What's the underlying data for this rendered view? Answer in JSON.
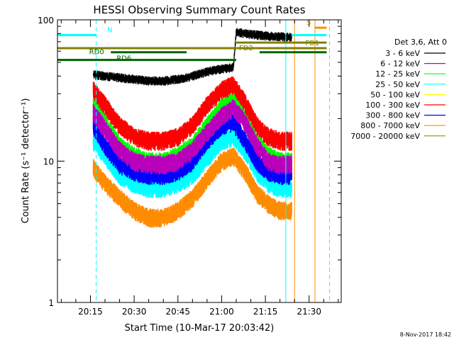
{
  "chart_data": {
    "type": "line",
    "title": "HESSI Observing Summary Count Rates",
    "xlabel": "Start Time (10-Mar-17 20:03:42)",
    "ylabel": "Count Rate (s⁻¹ detector⁻¹)",
    "y_scale": "log",
    "ylim": [
      1,
      100
    ],
    "xlim": [
      "20:03:42",
      "21:41"
    ],
    "x_ticks": [
      "20:15",
      "20:30",
      "20:45",
      "21:00",
      "21:15",
      "21:30"
    ],
    "y_ticks": [
      "1",
      "10",
      "100"
    ],
    "grid": false,
    "legend_position": "right",
    "legend_title": "Det 3,6, Att 0",
    "series": [
      {
        "name": "3 - 6 keV",
        "color": "#000000",
        "x": [
          "20:16",
          "20:20",
          "20:25",
          "20:30",
          "20:35",
          "20:40",
          "20:45",
          "20:50",
          "20:55",
          "21:00",
          "21:04",
          "21:05",
          "21:10",
          "21:15",
          "21:20",
          "21:24"
        ],
        "y": [
          41,
          40,
          39,
          38,
          37,
          37,
          38,
          40,
          43,
          45,
          46,
          82,
          79,
          77,
          76,
          75
        ]
      },
      {
        "name": "6 - 12 keV",
        "color": "#bb00bb",
        "x": [
          "20:16",
          "20:20",
          "20:25",
          "20:30",
          "20:35",
          "20:40",
          "20:45",
          "20:50",
          "20:55",
          "21:00",
          "21:04",
          "21:08",
          "21:12",
          "21:16",
          "21:20",
          "21:24"
        ],
        "y": [
          22,
          17,
          12,
          10,
          9.5,
          9.5,
          10,
          12,
          16,
          21,
          24,
          19,
          13,
          10,
          9.5,
          9.5
        ]
      },
      {
        "name": "12 - 25 keV",
        "color": "#00ff00",
        "x": [
          "20:16",
          "20:20",
          "20:25",
          "20:30",
          "20:35",
          "20:40",
          "20:45",
          "20:50",
          "20:55",
          "21:00",
          "21:04",
          "21:08",
          "21:12",
          "21:16",
          "21:20",
          "21:24"
        ],
        "y": [
          25,
          19,
          13,
          11,
          10,
          10,
          11,
          13,
          18,
          24,
          27,
          20,
          14,
          11,
          10,
          10
        ]
      },
      {
        "name": "25 - 50 keV",
        "color": "#00ffff",
        "x": [
          "20:16",
          "20:20",
          "20:25",
          "20:30",
          "20:35",
          "20:40",
          "20:45",
          "20:50",
          "20:55",
          "21:00",
          "21:04",
          "21:08",
          "21:12",
          "21:16",
          "21:20",
          "21:24"
        ],
        "y": [
          14,
          11,
          8,
          7,
          6.5,
          6.5,
          7,
          8,
          10.5,
          14,
          15,
          12,
          8.5,
          7,
          6.5,
          6.5
        ]
      },
      {
        "name": "50 - 100 keV",
        "color": "#ffff00",
        "x": [],
        "y": []
      },
      {
        "name": "100 - 300 keV",
        "color": "#ff0000",
        "x": [
          "20:16",
          "20:20",
          "20:25",
          "20:30",
          "20:35",
          "20:40",
          "20:45",
          "20:50",
          "20:55",
          "21:00",
          "21:04",
          "21:08",
          "21:12",
          "21:16",
          "21:20",
          "21:24"
        ],
        "y": [
          32,
          25,
          18,
          15,
          14,
          14,
          15,
          18,
          25,
          32,
          35,
          26,
          18,
          15,
          14,
          14
        ]
      },
      {
        "name": "300 - 800 keV",
        "color": "#0000ff",
        "x": [
          "20:16",
          "20:20",
          "20:25",
          "20:30",
          "20:35",
          "20:40",
          "20:45",
          "20:50",
          "20:55",
          "21:00",
          "21:04",
          "21:08",
          "21:12",
          "21:16",
          "21:20",
          "21:24"
        ],
        "y": [
          18,
          13,
          9.5,
          8.5,
          8,
          8,
          8.5,
          10,
          14,
          18,
          19,
          14,
          10,
          8.5,
          8,
          8
        ]
      },
      {
        "name": "800 - 7000 keV",
        "color": "#ff8c00",
        "x": [
          "20:16",
          "20:20",
          "20:25",
          "20:30",
          "20:35",
          "20:40",
          "20:45",
          "20:50",
          "20:55",
          "21:00",
          "21:04",
          "21:08",
          "21:12",
          "21:16",
          "21:20",
          "21:24"
        ],
        "y": [
          9,
          7,
          5.5,
          4.5,
          4,
          4,
          4.5,
          5.5,
          7.5,
          10,
          11,
          8.5,
          6,
          5,
          4.5,
          4.5
        ]
      },
      {
        "name": "7000 - 20000 keV",
        "color": "#8b8b00",
        "x": [],
        "y": []
      }
    ],
    "annotations": {
      "flags": [
        {
          "label": "N",
          "color": "#00ffff",
          "x_start": "20:03:42",
          "x_end": "20:17",
          "y": 78
        },
        {
          "label": "",
          "color": "#00ffff",
          "x_start": "21:24",
          "x_end": "21:36",
          "y": 78
        },
        {
          "label": "S",
          "color": "#ff8c00",
          "x_start": "21:32",
          "x_end": "21:36",
          "y": 88
        },
        {
          "label": "FD1",
          "color": "#808000",
          "x_start": "20:03:42",
          "x_end": "21:36",
          "y": 63
        },
        {
          "label": "FD2",
          "color": "#808000",
          "x_start": "21:05",
          "x_end": "21:36",
          "y": 69
        },
        {
          "label": "RD0",
          "color": "#006400",
          "x_start": "20:22",
          "x_end": "20:48",
          "y": 59
        },
        {
          "label": "",
          "color": "#006400",
          "x_start": "21:13",
          "x_end": "21:36",
          "y": 59
        },
        {
          "label": "RD6",
          "color": "#006400",
          "x_start": "20:03:42",
          "x_end": "21:05",
          "y": 52
        }
      ],
      "vlines": [
        {
          "x": "20:17",
          "color": "#00ffff",
          "style": "dashed"
        },
        {
          "x": "21:22",
          "color": "#00ffff",
          "style": "solid"
        },
        {
          "x": "21:25",
          "color": "#ff8c00",
          "style": "solid"
        },
        {
          "x": "21:32",
          "color": "#ff8c00",
          "style": "solid"
        },
        {
          "x": "21:37",
          "color": "#00ffff",
          "style": "dashed"
        }
      ]
    }
  },
  "footer": "8-Nov-2017 18:42"
}
